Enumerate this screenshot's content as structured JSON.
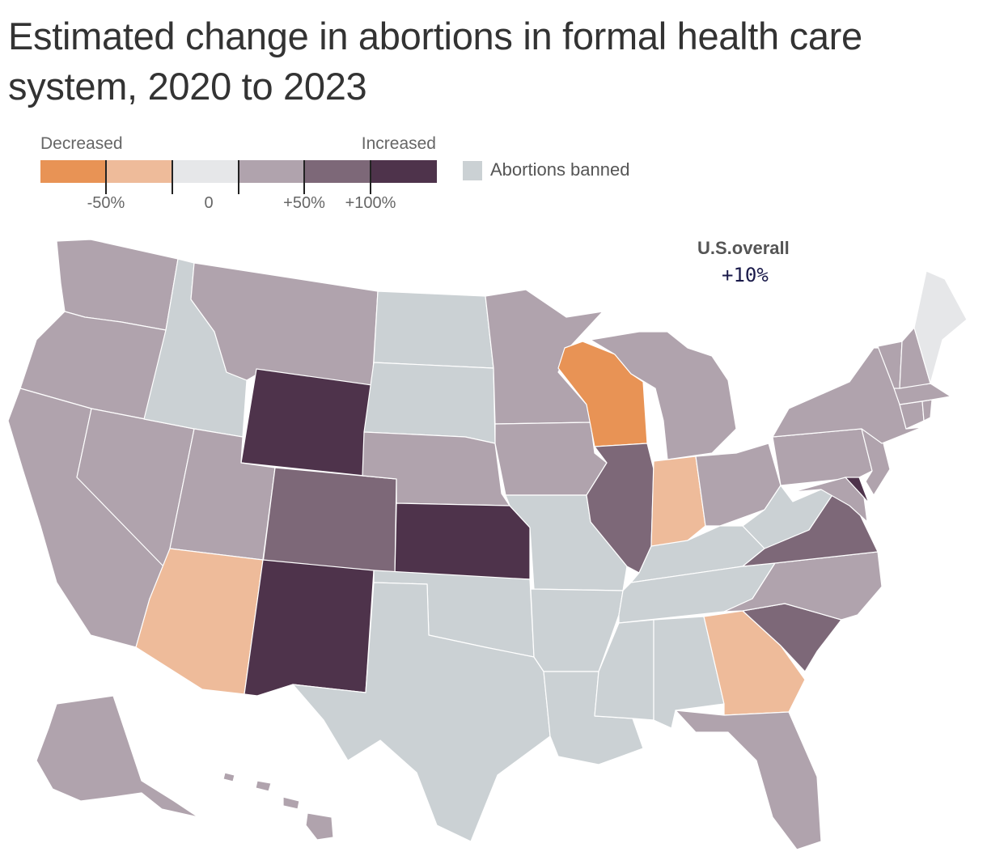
{
  "title": "Estimated change in abortions in formal health care system, 2020 to 2023",
  "legend": {
    "decreased_label": "Decreased",
    "increased_label": "Increased",
    "bins": [
      {
        "id": "bin-1",
        "color": "#e89355"
      },
      {
        "id": "bin-2",
        "color": "#eebb9a"
      },
      {
        "id": "bin-3",
        "color": "#e6e7e9"
      },
      {
        "id": "bin-4",
        "color": "#b0a3ad"
      },
      {
        "id": "bin-5",
        "color": "#7d6878"
      },
      {
        "id": "bin-6",
        "color": "#4e334b"
      }
    ],
    "tick_labels": [
      "-50%",
      "0",
      "+50%",
      "+100%"
    ],
    "banned_label": "Abortions banned",
    "banned_color": "#cbd1d4"
  },
  "overall": {
    "label": "U.S.overall",
    "value": "+10%"
  },
  "states": {
    "WA": "bin-4",
    "OR": "bin-4",
    "CA": "bin-4",
    "NV": "bin-4",
    "UT": "bin-4",
    "MT": "bin-4",
    "WY": "bin-6",
    "CO": "bin-5",
    "NM": "bin-6",
    "AZ": "bin-2",
    "ID": "banned",
    "ND": "banned",
    "SD": "banned",
    "NE": "bin-4",
    "KS": "bin-6",
    "OK": "banned",
    "TX": "banned",
    "MN": "bin-4",
    "IA": "bin-4",
    "MO": "banned",
    "AR": "banned",
    "LA": "banned",
    "WI": "bin-1",
    "IL": "bin-5",
    "MI": "bin-4",
    "IN": "bin-2",
    "OH": "bin-4",
    "KY": "banned",
    "TN": "banned",
    "MS": "banned",
    "AL": "banned",
    "GA": "bin-2",
    "FL": "bin-4",
    "SC": "bin-5",
    "NC": "bin-4",
    "VA": "bin-5",
    "WV": "banned",
    "PA": "bin-4",
    "NY": "bin-4",
    "NJ": "bin-4",
    "MD": "bin-4",
    "DE": "bin-6",
    "VT": "bin-4",
    "NH": "bin-4",
    "ME": "bin-3",
    "MA": "bin-4",
    "CT": "bin-4",
    "RI": "bin-4",
    "AK": "bin-4",
    "HI": "bin-4"
  }
}
